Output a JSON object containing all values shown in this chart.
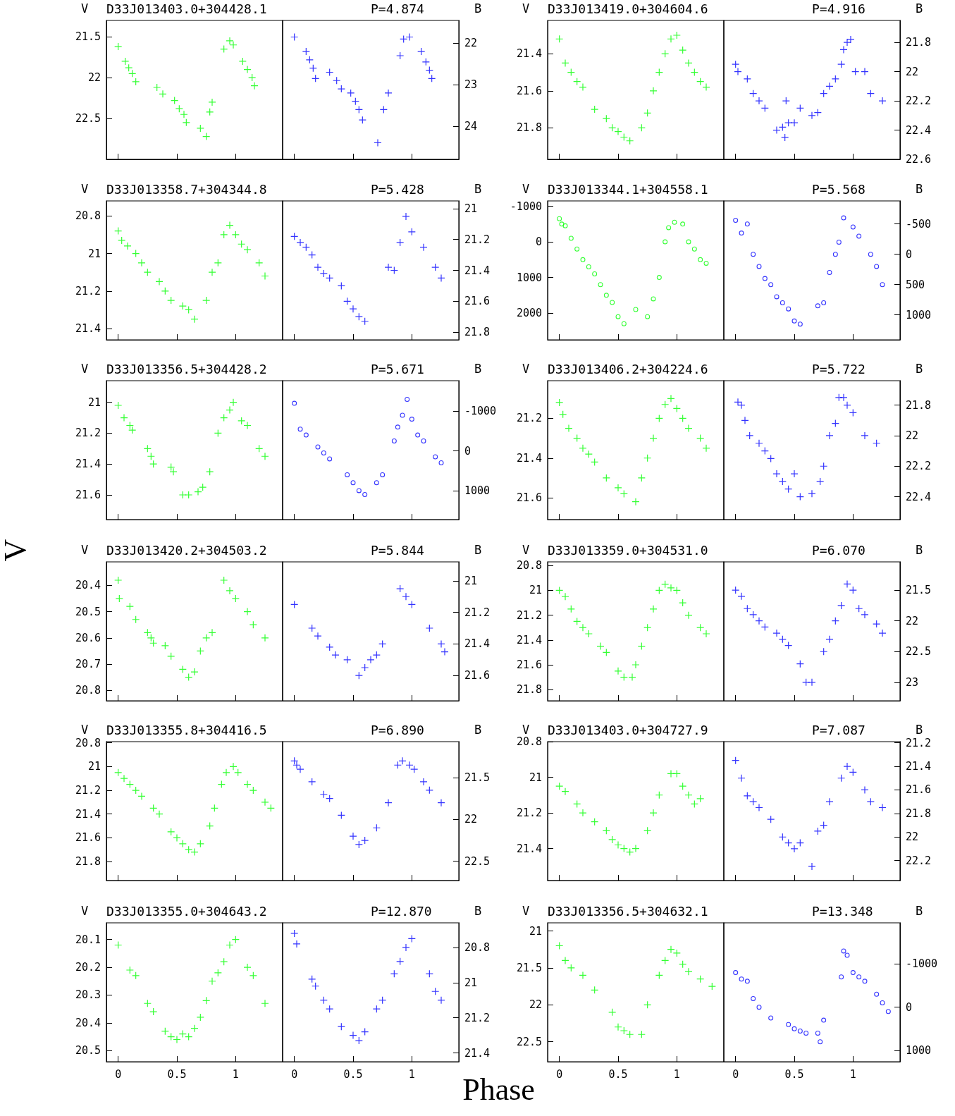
{
  "chart_data": [
    {
      "type": "scatter",
      "title": "D33J013403.0+304428.1",
      "ylabel": "V",
      "xlim": [
        -0.1,
        1.4
      ],
      "xticks": [
        0,
        0.5,
        1
      ],
      "ylim": [
        23.0,
        21.3
      ],
      "yticks": [
        21.5,
        22,
        22.5
      ],
      "marker": "cross",
      "tick_labels": "y",
      "series": [
        {
          "color": "#00ff00",
          "x": [
            0,
            0.06,
            0.09,
            0.12,
            0.15,
            0.33,
            0.38,
            0.48,
            0.52,
            0.56,
            0.58,
            0.7,
            0.75,
            0.78,
            0.8,
            0.9,
            0.95,
            0.98,
            1.06,
            1.1,
            1.14,
            1.16
          ],
          "values": [
            21.62,
            21.8,
            21.88,
            21.95,
            22.05,
            22.12,
            22.2,
            22.28,
            22.38,
            22.45,
            22.55,
            22.62,
            22.72,
            22.42,
            22.3,
            21.65,
            21.55,
            21.6,
            21.8,
            21.9,
            22.0,
            22.1
          ]
        }
      ]
    },
    {
      "type": "scatter",
      "title": "P=4.874",
      "y2label": "B",
      "xlim": [
        -0.1,
        1.4
      ],
      "xticks": [
        0,
        0.5,
        1
      ],
      "y2lim": [
        24.8,
        21.45
      ],
      "y2ticks": [
        22,
        23,
        24
      ],
      "marker": "cross",
      "tick_labels": "y",
      "series": [
        {
          "color": "#0000ff",
          "axis": "y2",
          "x": [
            0,
            0.1,
            0.13,
            0.16,
            0.18,
            0.3,
            0.36,
            0.4,
            0.48,
            0.52,
            0.55,
            0.58,
            0.71,
            0.76,
            0.8,
            0.9,
            0.93,
            0.98,
            1.08,
            1.12,
            1.15,
            1.17
          ],
          "values": [
            21.85,
            22.2,
            22.4,
            22.6,
            22.85,
            22.7,
            22.9,
            23.1,
            23.2,
            23.4,
            23.6,
            23.85,
            24.4,
            23.6,
            23.2,
            22.3,
            21.9,
            21.85,
            22.2,
            22.45,
            22.65,
            22.85
          ]
        }
      ]
    },
    {
      "type": "scatter",
      "title": "D33J013419.0+304604.6",
      "ylabel": "V",
      "xlim": [
        -0.1,
        1.4
      ],
      "xticks": [
        0,
        0.5,
        1
      ],
      "ylim": [
        21.97,
        21.22
      ],
      "yticks": [
        21.4,
        21.6,
        21.8
      ],
      "marker": "cross",
      "tick_labels": "y",
      "series": [
        {
          "color": "#00ff00",
          "x": [
            0,
            0.05,
            0.1,
            0.15,
            0.2,
            0.3,
            0.4,
            0.45,
            0.5,
            0.55,
            0.6,
            0.7,
            0.75,
            0.8,
            0.85,
            0.9,
            0.95,
            1.0,
            1.05,
            1.1,
            1.15,
            1.2,
            1.25
          ],
          "values": [
            21.32,
            21.45,
            21.5,
            21.55,
            21.58,
            21.7,
            21.75,
            21.8,
            21.82,
            21.85,
            21.87,
            21.8,
            21.72,
            21.6,
            21.5,
            21.4,
            21.32,
            21.3,
            21.38,
            21.45,
            21.5,
            21.55,
            21.58
          ]
        }
      ]
    },
    {
      "type": "scatter",
      "title": "P=4.916",
      "y2label": "B",
      "xlim": [
        -0.1,
        1.4
      ],
      "xticks": [
        0,
        0.5,
        1
      ],
      "y2lim": [
        22.6,
        21.65
      ],
      "y2ticks": [
        21.8,
        22,
        22.2,
        22.4,
        22.6
      ],
      "marker": "cross",
      "tick_labels": "y",
      "series": [
        {
          "color": "#0000ff",
          "axis": "y2",
          "x": [
            0,
            0.02,
            0.1,
            0.15,
            0.2,
            0.25,
            0.35,
            0.4,
            0.42,
            0.45,
            0.43,
            0.5,
            0.55,
            0.65,
            0.7,
            0.75,
            0.8,
            0.85,
            0.9,
            0.92,
            0.95,
            0.98,
            1.02,
            1.1,
            1.15,
            1.25
          ],
          "values": [
            21.95,
            22.0,
            22.05,
            22.15,
            22.2,
            22.25,
            22.4,
            22.38,
            22.45,
            22.35,
            22.2,
            22.35,
            22.25,
            22.3,
            22.28,
            22.15,
            22.1,
            22.05,
            21.95,
            21.85,
            21.8,
            21.78,
            22.0,
            22.0,
            22.15,
            22.2
          ]
        }
      ]
    },
    {
      "type": "scatter",
      "title": "D33J013358.7+304344.8",
      "ylabel": "V",
      "xlim": [
        -0.1,
        1.4
      ],
      "xticks": [
        0,
        0.5,
        1
      ],
      "ylim": [
        21.46,
        20.72
      ],
      "yticks": [
        20.8,
        21,
        21.2,
        21.4
      ],
      "marker": "cross",
      "tick_labels": "y",
      "series": [
        {
          "color": "#00ff00",
          "x": [
            0,
            0.03,
            0.08,
            0.15,
            0.2,
            0.25,
            0.35,
            0.4,
            0.45,
            0.55,
            0.6,
            0.65,
            0.75,
            0.8,
            0.85,
            0.9,
            0.95,
            1.0,
            1.05,
            1.1,
            1.2,
            1.25
          ],
          "values": [
            20.88,
            20.93,
            20.96,
            21.0,
            21.05,
            21.1,
            21.15,
            21.2,
            21.25,
            21.28,
            21.3,
            21.35,
            21.25,
            21.1,
            21.05,
            20.9,
            20.85,
            20.9,
            20.95,
            20.98,
            21.05,
            21.12
          ]
        }
      ]
    },
    {
      "type": "scatter",
      "title": "P=5.428",
      "y2label": "B",
      "xlim": [
        -0.1,
        1.4
      ],
      "xticks": [
        0,
        0.5,
        1
      ],
      "y2lim": [
        21.85,
        20.95
      ],
      "y2ticks": [
        21,
        21.2,
        21.4,
        21.6,
        21.8
      ],
      "marker": "cross",
      "tick_labels": "y",
      "series": [
        {
          "color": "#0000ff",
          "axis": "y2",
          "x": [
            0,
            0.05,
            0.1,
            0.15,
            0.2,
            0.25,
            0.3,
            0.4,
            0.45,
            0.5,
            0.55,
            0.6,
            0.8,
            0.85,
            0.9,
            0.95,
            1.0,
            1.1,
            1.2,
            1.25
          ],
          "values": [
            21.18,
            21.22,
            21.25,
            21.3,
            21.38,
            21.42,
            21.45,
            21.5,
            21.6,
            21.65,
            21.7,
            21.73,
            21.38,
            21.4,
            21.22,
            21.05,
            21.15,
            21.25,
            21.38,
            21.45
          ]
        }
      ]
    },
    {
      "type": "scatter",
      "title": "D33J013344.1+304558.1",
      "ylabel": "V",
      "xlim": [
        -0.1,
        1.4
      ],
      "xticks": [
        0,
        0.5,
        1
      ],
      "ylim": [
        2750,
        -1150
      ],
      "yticks": [
        -1000,
        0,
        1000,
        2000
      ],
      "marker": "circle",
      "tick_labels": "y",
      "series": [
        {
          "color": "#00ff00",
          "x": [
            0,
            0.02,
            0.05,
            0.1,
            0.15,
            0.2,
            0.25,
            0.3,
            0.35,
            0.4,
            0.45,
            0.5,
            0.55,
            0.65,
            0.75,
            0.8,
            0.85,
            0.9,
            0.93,
            0.98,
            1.05,
            1.1,
            1.15,
            1.2,
            1.25
          ],
          "values": [
            -650,
            -500,
            -450,
            -100,
            200,
            500,
            700,
            900,
            1200,
            1500,
            1700,
            2100,
            2300,
            1900,
            2100,
            1600,
            1000,
            0,
            -400,
            -550,
            -500,
            0,
            200,
            500,
            600
          ]
        }
      ]
    },
    {
      "type": "scatter",
      "title": "P=5.568",
      "y2label": "B",
      "xlim": [
        -0.1,
        1.4
      ],
      "xticks": [
        0,
        0.5,
        1
      ],
      "y2lim": [
        1410,
        -880
      ],
      "y2ticks": [
        -500,
        0,
        500,
        1000
      ],
      "marker": "circle",
      "tick_labels": "y",
      "series": [
        {
          "color": "#0000ff",
          "axis": "y2",
          "x": [
            0,
            0.05,
            0.1,
            0.15,
            0.2,
            0.25,
            0.3,
            0.35,
            0.4,
            0.45,
            0.5,
            0.55,
            0.7,
            0.75,
            0.8,
            0.85,
            0.88,
            0.92,
            1.0,
            1.05,
            1.15,
            1.2,
            1.25
          ],
          "values": [
            -560,
            -350,
            -500,
            0,
            200,
            400,
            500,
            700,
            800,
            900,
            1100,
            1150,
            850,
            800,
            300,
            0,
            -200,
            -600,
            -450,
            -300,
            0,
            200,
            500
          ]
        }
      ]
    },
    {
      "type": "scatter",
      "title": "D33J013356.5+304428.2",
      "ylabel": "V",
      "xlim": [
        -0.1,
        1.4
      ],
      "xticks": [
        0,
        0.5,
        1
      ],
      "ylim": [
        21.76,
        20.86
      ],
      "yticks": [
        21,
        21.2,
        21.4,
        21.6
      ],
      "marker": "cross",
      "tick_labels": "y",
      "series": [
        {
          "color": "#00ff00",
          "x": [
            0,
            0.05,
            0.1,
            0.12,
            0.25,
            0.28,
            0.3,
            0.45,
            0.47,
            0.55,
            0.6,
            0.68,
            0.72,
            0.78,
            0.85,
            0.9,
            0.95,
            0.98,
            1.05,
            1.1,
            1.2,
            1.25
          ],
          "values": [
            21.02,
            21.1,
            21.15,
            21.18,
            21.3,
            21.35,
            21.4,
            21.42,
            21.45,
            21.6,
            21.6,
            21.58,
            21.55,
            21.45,
            21.2,
            21.1,
            21.05,
            21.0,
            21.12,
            21.15,
            21.3,
            21.35
          ]
        }
      ]
    },
    {
      "type": "scatter",
      "title": "P=5.671",
      "y2label": "B",
      "xlim": [
        -0.1,
        1.4
      ],
      "xticks": [
        0,
        0.5,
        1
      ],
      "y2lim": [
        1730,
        -1770
      ],
      "y2ticks": [
        -1000,
        0,
        1000
      ],
      "marker": "circle",
      "tick_labels": "y",
      "series": [
        {
          "color": "#0000ff",
          "axis": "y2",
          "x": [
            0,
            0.05,
            0.1,
            0.2,
            0.25,
            0.3,
            0.45,
            0.5,
            0.55,
            0.6,
            0.7,
            0.75,
            0.85,
            0.88,
            0.92,
            0.96,
            1.0,
            1.05,
            1.1,
            1.2,
            1.25
          ],
          "values": [
            -1200,
            -550,
            -400,
            -100,
            50,
            200,
            600,
            800,
            1000,
            1100,
            800,
            600,
            -250,
            -600,
            -900,
            -1300,
            -800,
            -400,
            -250,
            150,
            300
          ]
        }
      ]
    },
    {
      "type": "scatter",
      "title": "D33J013406.2+304224.6",
      "ylabel": "V",
      "xlim": [
        -0.1,
        1.4
      ],
      "xticks": [
        0,
        0.5,
        1
      ],
      "ylim": [
        21.71,
        21.01
      ],
      "yticks": [
        21.2,
        21.4,
        21.6
      ],
      "marker": "cross",
      "tick_labels": "y",
      "series": [
        {
          "color": "#00ff00",
          "x": [
            0,
            0.03,
            0.08,
            0.15,
            0.2,
            0.25,
            0.3,
            0.4,
            0.5,
            0.55,
            0.65,
            0.7,
            0.75,
            0.8,
            0.85,
            0.9,
            0.95,
            1.0,
            1.05,
            1.1,
            1.2,
            1.25
          ],
          "values": [
            21.12,
            21.18,
            21.25,
            21.3,
            21.35,
            21.38,
            21.42,
            21.5,
            21.55,
            21.58,
            21.62,
            21.5,
            21.4,
            21.3,
            21.2,
            21.13,
            21.1,
            21.15,
            21.2,
            21.25,
            21.3,
            21.35
          ]
        }
      ]
    },
    {
      "type": "scatter",
      "title": "P=5.722",
      "y2label": "B",
      "xlim": [
        -0.1,
        1.4
      ],
      "xticks": [
        0,
        0.5,
        1
      ],
      "y2lim": [
        22.55,
        21.64
      ],
      "y2ticks": [
        21.8,
        22,
        22.2,
        22.4
      ],
      "marker": "cross",
      "tick_labels": "y",
      "series": [
        {
          "color": "#0000ff",
          "axis": "y2",
          "x": [
            0.02,
            0.05,
            0.08,
            0.12,
            0.2,
            0.25,
            0.3,
            0.35,
            0.4,
            0.45,
            0.5,
            0.55,
            0.65,
            0.72,
            0.75,
            0.8,
            0.85,
            0.88,
            0.92,
            0.95,
            1.0,
            1.1,
            1.2
          ],
          "values": [
            21.78,
            21.8,
            21.9,
            22.0,
            22.05,
            22.1,
            22.15,
            22.25,
            22.3,
            22.35,
            22.25,
            22.4,
            22.38,
            22.3,
            22.2,
            22.0,
            21.92,
            21.75,
            21.75,
            21.8,
            21.85,
            22.0,
            22.05
          ]
        }
      ]
    },
    {
      "type": "scatter",
      "title": "D33J013420.2+304503.2",
      "ylabel": "V",
      "xlim": [
        -0.1,
        1.4
      ],
      "xticks": [
        0,
        0.5,
        1
      ],
      "ylim": [
        20.84,
        20.31
      ],
      "yticks": [
        20.4,
        20.5,
        20.6,
        20.7,
        20.8
      ],
      "marker": "cross",
      "tick_labels": "y",
      "series": [
        {
          "color": "#00ff00",
          "x": [
            0,
            0.01,
            0.1,
            0.15,
            0.25,
            0.28,
            0.3,
            0.4,
            0.45,
            0.55,
            0.6,
            0.65,
            0.7,
            0.75,
            0.8,
            0.9,
            0.95,
            1.0,
            1.1,
            1.15,
            1.25
          ],
          "values": [
            20.38,
            20.45,
            20.48,
            20.53,
            20.58,
            20.6,
            20.62,
            20.63,
            20.67,
            20.72,
            20.75,
            20.73,
            20.65,
            20.6,
            20.58,
            20.38,
            20.42,
            20.45,
            20.5,
            20.55,
            20.6
          ]
        }
      ]
    },
    {
      "type": "scatter",
      "title": "P=5.844",
      "y2label": "B",
      "xlim": [
        -0.1,
        1.4
      ],
      "xticks": [
        0,
        0.5,
        1
      ],
      "y2lim": [
        21.76,
        20.88
      ],
      "y2ticks": [
        21,
        21.2,
        21.4,
        21.6
      ],
      "marker": "cross",
      "tick_labels": "y",
      "series": [
        {
          "color": "#0000ff",
          "axis": "y2",
          "x": [
            0,
            0.15,
            0.2,
            0.3,
            0.35,
            0.45,
            0.55,
            0.6,
            0.65,
            0.7,
            0.75,
            0.9,
            0.95,
            1.0,
            1.15,
            1.25,
            1.28
          ],
          "values": [
            21.15,
            21.3,
            21.35,
            21.42,
            21.47,
            21.5,
            21.6,
            21.55,
            21.5,
            21.47,
            21.4,
            21.05,
            21.1,
            21.15,
            21.3,
            21.4,
            21.45
          ]
        }
      ]
    },
    {
      "type": "scatter",
      "title": "D33J013359.0+304531.0",
      "ylabel": "V",
      "xlim": [
        -0.1,
        1.4
      ],
      "xticks": [
        0,
        0.5,
        1
      ],
      "ylim": [
        21.89,
        20.77
      ],
      "yticks": [
        20.8,
        21,
        21.2,
        21.4,
        21.6,
        21.8
      ],
      "marker": "cross",
      "tick_labels": "y",
      "series": [
        {
          "color": "#00ff00",
          "x": [
            0,
            0.05,
            0.1,
            0.15,
            0.2,
            0.25,
            0.35,
            0.4,
            0.5,
            0.55,
            0.62,
            0.65,
            0.7,
            0.75,
            0.8,
            0.85,
            0.9,
            0.95,
            1.0,
            1.05,
            1.1,
            1.2,
            1.25
          ],
          "values": [
            21.0,
            21.05,
            21.15,
            21.25,
            21.3,
            21.35,
            21.45,
            21.5,
            21.65,
            21.7,
            21.7,
            21.6,
            21.45,
            21.3,
            21.15,
            21.0,
            20.95,
            20.98,
            21.0,
            21.1,
            21.2,
            21.3,
            21.35
          ]
        }
      ]
    },
    {
      "type": "scatter",
      "title": "P=6.070",
      "y2label": "B",
      "xlim": [
        -0.1,
        1.4
      ],
      "xticks": [
        0,
        0.5,
        1
      ],
      "y2lim": [
        23.3,
        21.04
      ],
      "y2ticks": [
        21.5,
        22,
        22.5,
        23
      ],
      "marker": "cross",
      "tick_labels": "y",
      "series": [
        {
          "color": "#0000ff",
          "axis": "y2",
          "x": [
            0,
            0.05,
            0.1,
            0.15,
            0.2,
            0.25,
            0.35,
            0.4,
            0.45,
            0.55,
            0.6,
            0.65,
            0.75,
            0.8,
            0.85,
            0.9,
            0.95,
            1.0,
            1.05,
            1.1,
            1.2,
            1.25
          ],
          "values": [
            21.5,
            21.6,
            21.8,
            21.9,
            22.0,
            22.1,
            22.2,
            22.3,
            22.4,
            22.7,
            23.0,
            23.0,
            22.5,
            22.3,
            22.0,
            21.75,
            21.4,
            21.5,
            21.8,
            21.9,
            22.05,
            22.2
          ]
        }
      ]
    },
    {
      "type": "scatter",
      "title": "D33J013355.8+304416.5",
      "ylabel": "V",
      "xlim": [
        -0.1,
        1.4
      ],
      "xticks": [
        0,
        0.5,
        1
      ],
      "ylim": [
        21.96,
        20.79
      ],
      "yticks": [
        20.8,
        21,
        21.2,
        21.4,
        21.6,
        21.8
      ],
      "marker": "cross",
      "tick_labels": "y",
      "series": [
        {
          "color": "#00ff00",
          "x": [
            0,
            0.05,
            0.1,
            0.15,
            0.2,
            0.3,
            0.35,
            0.45,
            0.5,
            0.55,
            0.6,
            0.65,
            0.7,
            0.78,
            0.82,
            0.88,
            0.92,
            0.98,
            1.02,
            1.1,
            1.15,
            1.25,
            1.3
          ],
          "values": [
            21.05,
            21.1,
            21.15,
            21.2,
            21.25,
            21.35,
            21.4,
            21.55,
            21.6,
            21.65,
            21.7,
            21.72,
            21.65,
            21.5,
            21.35,
            21.15,
            21.05,
            21.0,
            21.05,
            21.15,
            21.2,
            21.3,
            21.35
          ]
        }
      ]
    },
    {
      "type": "scatter",
      "title": "P=6.890",
      "y2label": "B",
      "xlim": [
        -0.1,
        1.4
      ],
      "xticks": [
        0,
        0.5,
        1
      ],
      "y2lim": [
        22.73,
        21.07
      ],
      "y2ticks": [
        21.5,
        22,
        22.5
      ],
      "marker": "cross",
      "tick_labels": "y",
      "series": [
        {
          "color": "#0000ff",
          "axis": "y2",
          "x": [
            0,
            0.02,
            0.05,
            0.15,
            0.25,
            0.3,
            0.4,
            0.5,
            0.55,
            0.6,
            0.7,
            0.8,
            0.88,
            0.92,
            0.98,
            1.02,
            1.1,
            1.15,
            1.25
          ],
          "values": [
            21.3,
            21.35,
            21.4,
            21.55,
            21.7,
            21.75,
            21.95,
            22.2,
            22.3,
            22.25,
            22.1,
            21.8,
            21.35,
            21.3,
            21.35,
            21.4,
            21.55,
            21.65,
            21.8
          ]
        }
      ]
    },
    {
      "type": "scatter",
      "title": "D33J013403.0+304727.9",
      "ylabel": "V",
      "xlim": [
        -0.1,
        1.4
      ],
      "xticks": [
        0,
        0.5,
        1
      ],
      "ylim": [
        21.58,
        20.8
      ],
      "yticks": [
        20.8,
        21,
        21.2,
        21.4
      ],
      "marker": "cross",
      "tick_labels": "y",
      "series": [
        {
          "color": "#00ff00",
          "x": [
            0,
            0.05,
            0.15,
            0.2,
            0.3,
            0.4,
            0.45,
            0.5,
            0.55,
            0.6,
            0.65,
            0.75,
            0.8,
            0.85,
            0.95,
            1.0,
            1.05,
            1.1,
            1.15,
            1.2
          ],
          "values": [
            21.05,
            21.08,
            21.15,
            21.2,
            21.25,
            21.3,
            21.35,
            21.38,
            21.4,
            21.42,
            21.4,
            21.3,
            21.2,
            21.1,
            20.98,
            20.98,
            21.05,
            21.1,
            21.15,
            21.12
          ]
        }
      ]
    },
    {
      "type": "scatter",
      "title": "P=7.087",
      "y2label": "B",
      "xlim": [
        -0.1,
        1.4
      ],
      "xticks": [
        0,
        0.5,
        1
      ],
      "y2lim": [
        22.37,
        21.19
      ],
      "y2ticks": [
        21.2,
        21.4,
        21.6,
        21.8,
        22,
        22.2
      ],
      "marker": "cross",
      "tick_labels": "y",
      "series": [
        {
          "color": "#0000ff",
          "axis": "y2",
          "x": [
            0,
            0.05,
            0.1,
            0.15,
            0.2,
            0.3,
            0.4,
            0.45,
            0.5,
            0.55,
            0.65,
            0.7,
            0.75,
            0.8,
            0.9,
            0.95,
            1.0,
            1.1,
            1.15,
            1.25
          ],
          "values": [
            21.35,
            21.5,
            21.65,
            21.7,
            21.75,
            21.85,
            22.0,
            22.05,
            22.1,
            22.05,
            22.25,
            21.95,
            21.9,
            21.7,
            21.5,
            21.4,
            21.45,
            21.6,
            21.7,
            21.75
          ]
        }
      ]
    },
    {
      "type": "scatter",
      "title": "D33J013355.0+304643.2",
      "ylabel": "V",
      "xlim": [
        -0.1,
        1.4
      ],
      "xticks": [
        0,
        0.5,
        1
      ],
      "ylim": [
        20.54,
        20.04
      ],
      "yticks": [
        20.1,
        20.2,
        20.3,
        20.4,
        20.5
      ],
      "marker": "cross",
      "series": [
        {
          "color": "#00ff00",
          "x": [
            0,
            0.1,
            0.15,
            0.25,
            0.3,
            0.4,
            0.45,
            0.5,
            0.55,
            0.6,
            0.65,
            0.7,
            0.75,
            0.8,
            0.85,
            0.9,
            0.95,
            1.0,
            1.1,
            1.15,
            1.25
          ],
          "values": [
            20.12,
            20.21,
            20.23,
            20.33,
            20.36,
            20.43,
            20.45,
            20.46,
            20.44,
            20.45,
            20.42,
            20.38,
            20.32,
            20.25,
            20.22,
            20.18,
            20.12,
            20.1,
            20.2,
            20.23,
            20.33
          ]
        }
      ]
    },
    {
      "type": "scatter",
      "title": "P=12.870",
      "y2label": "B",
      "xlim": [
        -0.1,
        1.4
      ],
      "xticks": [
        0,
        0.5,
        1
      ],
      "y2lim": [
        21.45,
        20.66
      ],
      "y2ticks": [
        20.8,
        21,
        21.2,
        21.4
      ],
      "marker": "cross",
      "series": [
        {
          "color": "#0000ff",
          "axis": "y2",
          "x": [
            0,
            0.02,
            0.15,
            0.18,
            0.25,
            0.3,
            0.4,
            0.5,
            0.55,
            0.6,
            0.7,
            0.75,
            0.85,
            0.9,
            0.95,
            1.0,
            1.15,
            1.2,
            1.25
          ],
          "values": [
            20.72,
            20.78,
            20.98,
            21.02,
            21.1,
            21.15,
            21.25,
            21.3,
            21.33,
            21.28,
            21.15,
            21.1,
            20.95,
            20.88,
            20.8,
            20.75,
            20.95,
            21.05,
            21.1
          ]
        }
      ]
    },
    {
      "type": "scatter",
      "title": "D33J013356.5+304632.1",
      "ylabel": "V",
      "xlim": [
        -0.1,
        1.4
      ],
      "xticks": [
        0,
        0.5,
        1
      ],
      "ylim": [
        22.77,
        20.89
      ],
      "yticks": [
        21,
        21.5,
        22,
        22.5
      ],
      "marker": "cross",
      "series": [
        {
          "color": "#00ff00",
          "x": [
            0,
            0.05,
            0.1,
            0.2,
            0.3,
            0.45,
            0.5,
            0.55,
            0.6,
            0.7,
            0.75,
            0.85,
            0.9,
            0.95,
            1.0,
            1.05,
            1.1,
            1.2,
            1.3
          ],
          "values": [
            21.2,
            21.4,
            21.5,
            21.6,
            21.8,
            22.1,
            22.3,
            22.35,
            22.4,
            22.4,
            22.0,
            21.6,
            21.4,
            21.25,
            21.3,
            21.45,
            21.55,
            21.65,
            21.75
          ]
        }
      ]
    },
    {
      "type": "scatter",
      "title": "P=13.348",
      "y2label": "B",
      "xlim": [
        -0.1,
        1.4
      ],
      "xticks": [
        0,
        0.5,
        1
      ],
      "y2lim": [
        1260,
        -1950
      ],
      "y2ticks": [
        -1000,
        0,
        1000
      ],
      "marker": "circle",
      "series": [
        {
          "color": "#0000ff",
          "axis": "y2",
          "x": [
            0,
            0.05,
            0.1,
            0.15,
            0.2,
            0.3,
            0.45,
            0.5,
            0.55,
            0.6,
            0.7,
            0.72,
            0.75,
            0.9,
            0.92,
            0.95,
            1.0,
            1.05,
            1.1,
            1.2,
            1.25,
            1.3
          ],
          "values": [
            -800,
            -650,
            -600,
            -200,
            0,
            250,
            400,
            500,
            550,
            600,
            600,
            800,
            300,
            -700,
            -1300,
            -1200,
            -800,
            -700,
            -600,
            -300,
            -100,
            100
          ]
        }
      ]
    },
    {
      "type": "other",
      "xlabel": "Phase",
      "ylabel": "V"
    }
  ]
}
